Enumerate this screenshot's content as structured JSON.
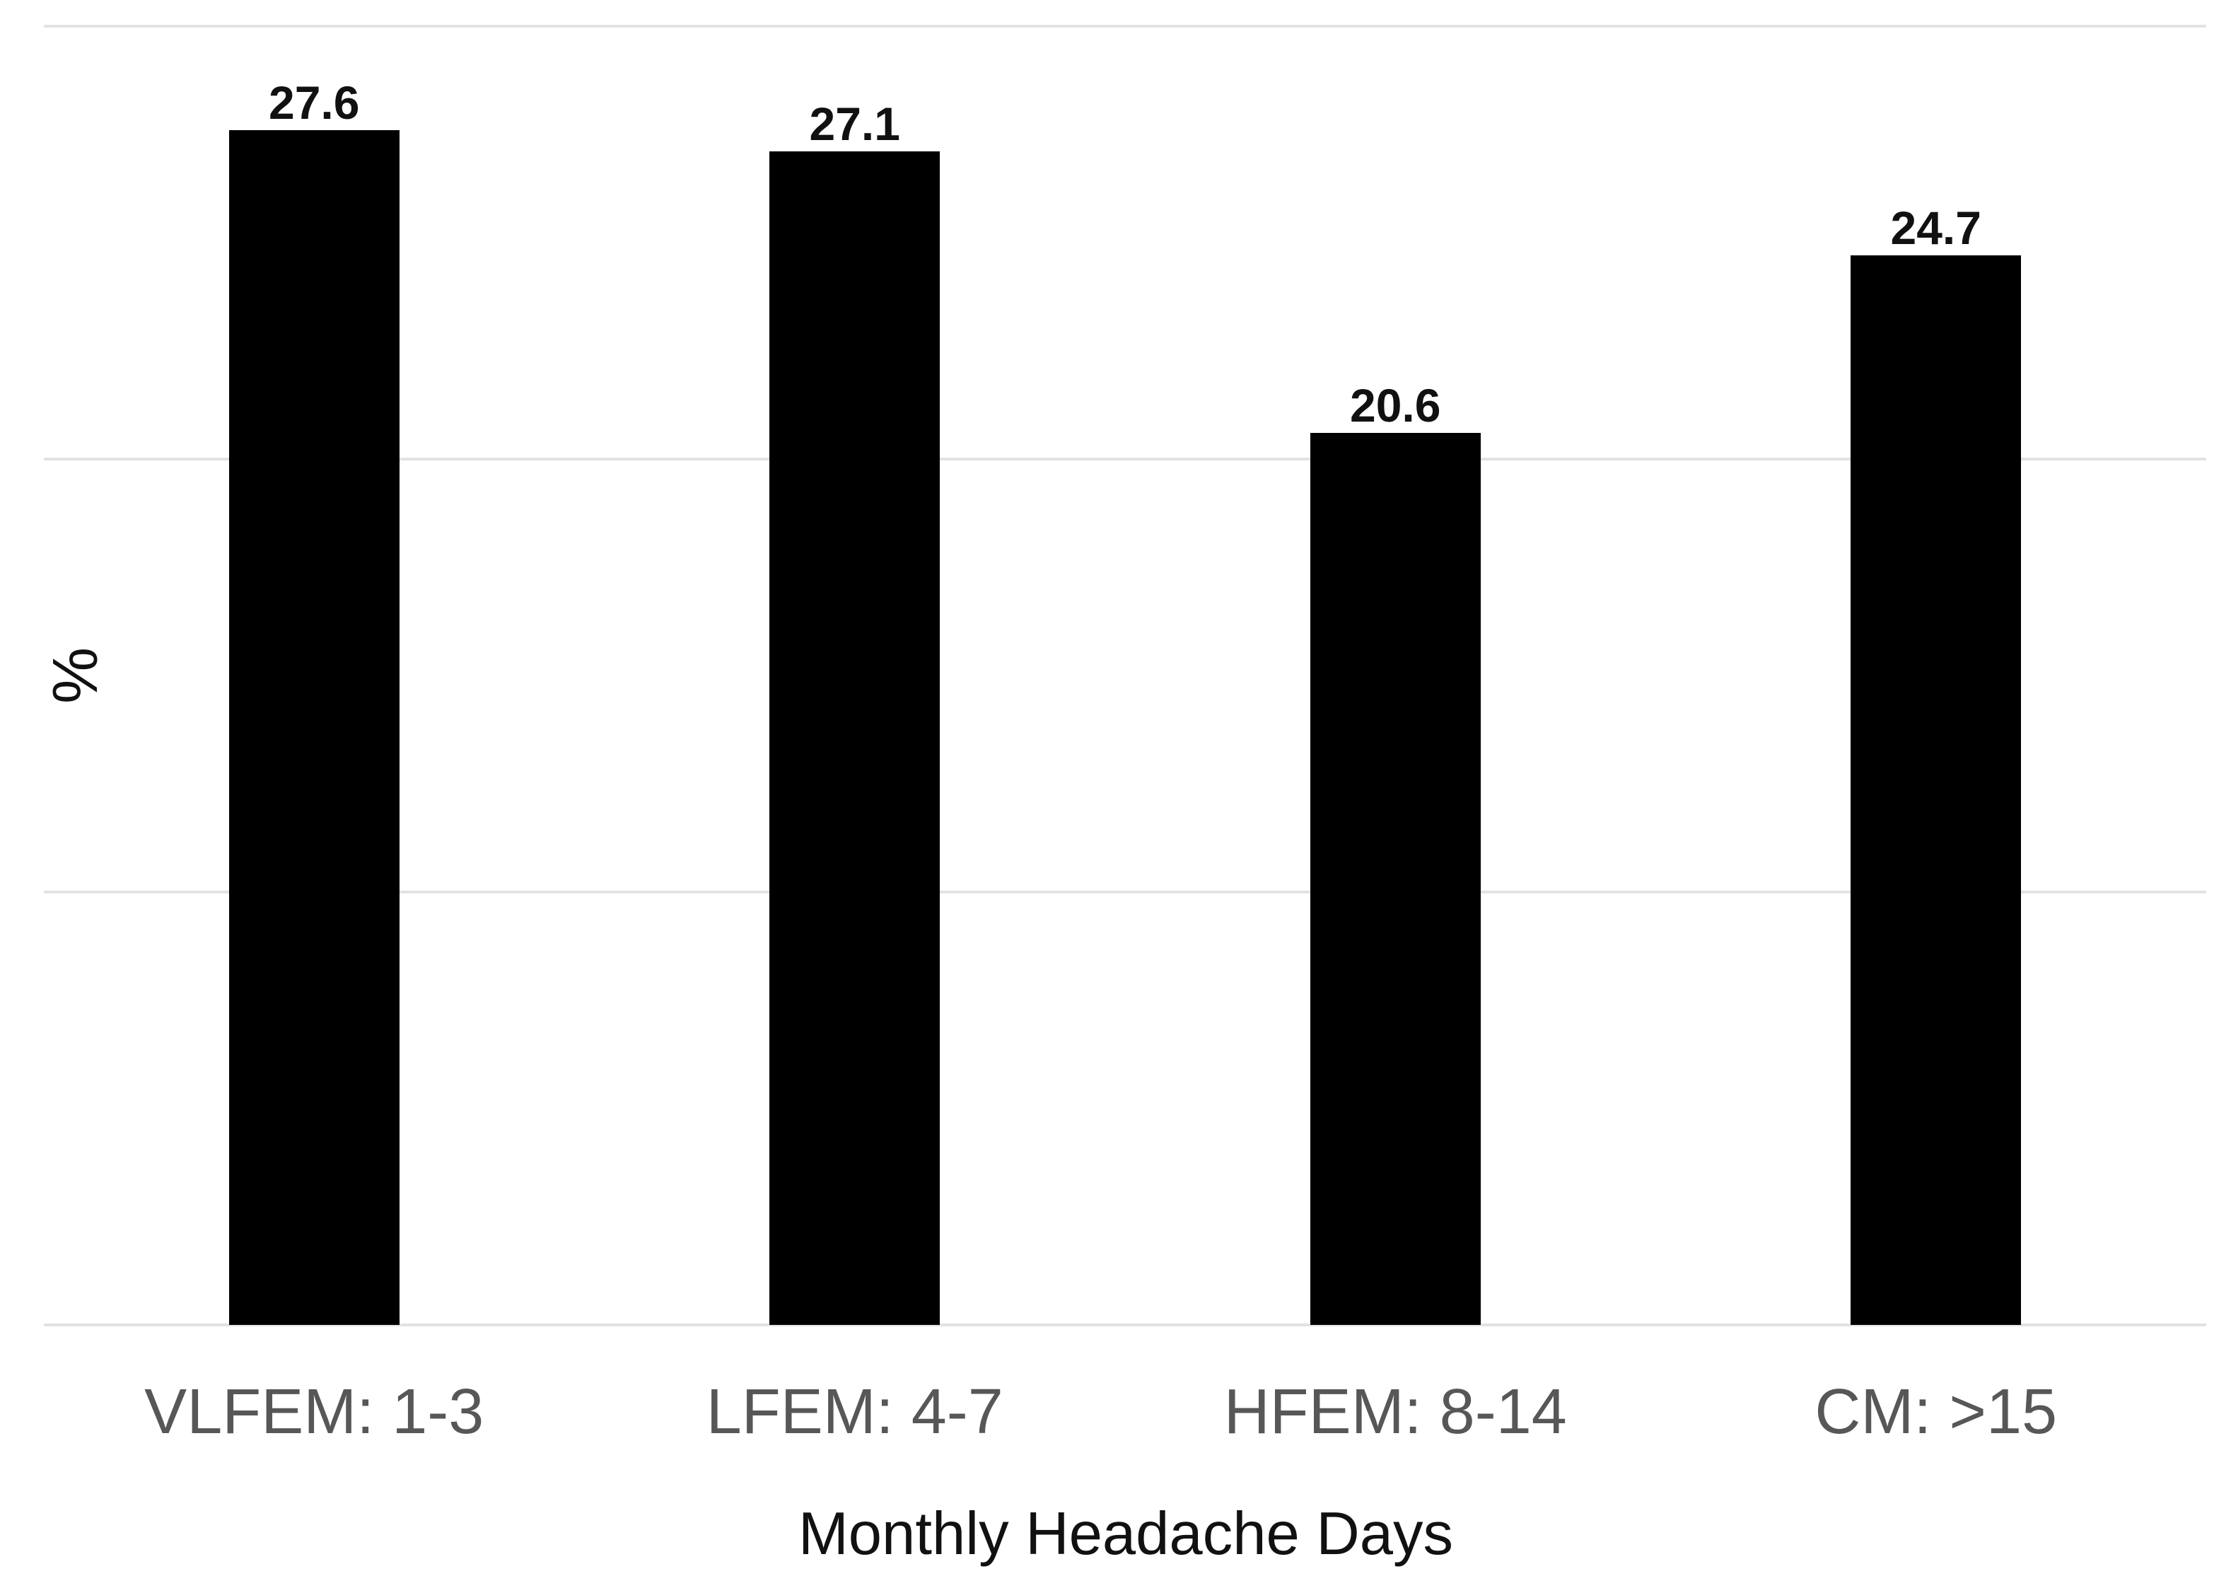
{
  "chart_data": {
    "type": "bar",
    "categories": [
      "VLFEM: 1-3",
      "LFEM: 4-7",
      "HFEM: 8-14",
      "CM: >15"
    ],
    "values": [
      27.6,
      27.1,
      20.6,
      24.7
    ],
    "value_labels": [
      "27.6",
      "27.1",
      "20.6",
      "24.7"
    ],
    "title": "",
    "xlabel": "Monthly Headache Days",
    "ylabel": "%",
    "ylim": [
      0,
      30
    ],
    "gridline_values": [
      0,
      10,
      20,
      30
    ],
    "grid": "horizontal-only",
    "y_tick_labels_visible": false,
    "legend": "none",
    "bar_color": "#000000",
    "gridline_color": "#e2e2e2",
    "category_label_color": "#575757",
    "data_label_color": "#111111",
    "axis_title_color": "#111111",
    "background_color": "#ffffff"
  }
}
